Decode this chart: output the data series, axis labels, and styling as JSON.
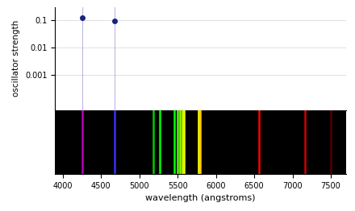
{
  "xlim": [
    3900,
    7700
  ],
  "osc_lines": [
    {
      "wavelength": 4258,
      "strength": 0.128
    },
    {
      "wavelength": 4678,
      "strength": 0.098
    }
  ],
  "spectrum_lines": [
    {
      "wavelength": 4260,
      "color": "#bb00bb"
    },
    {
      "wavelength": 4680,
      "color": "#3333ff"
    },
    {
      "wavelength": 5185,
      "color": "#00cc00"
    },
    {
      "wavelength": 5270,
      "color": "#00ff00"
    },
    {
      "wavelength": 5461,
      "color": "#00ff00"
    },
    {
      "wavelength": 5500,
      "color": "#55ff00"
    },
    {
      "wavelength": 5535,
      "color": "#99ff00"
    },
    {
      "wavelength": 5560,
      "color": "#ccff00"
    },
    {
      "wavelength": 5580,
      "color": "#eeff00"
    },
    {
      "wavelength": 5770,
      "color": "#ffff00"
    },
    {
      "wavelength": 5790,
      "color": "#ffcc00"
    },
    {
      "wavelength": 6563,
      "color": "#ff0000"
    },
    {
      "wavelength": 7160,
      "color": "#cc0000"
    },
    {
      "wavelength": 7500,
      "color": "#550000"
    }
  ],
  "ylim_osc": [
    5e-05,
    0.3
  ],
  "xlabel": "wavelength (angstroms)",
  "ylabel": "oscillator strength",
  "dot_color": "#1a237e",
  "vline_color": "#aaaadd",
  "bg_color": "#000000",
  "xticks": [
    4000,
    4500,
    5000,
    5500,
    6000,
    6500,
    7000,
    7500
  ],
  "yticks": [
    0.1,
    0.01,
    0.001
  ],
  "ytick_labels": [
    "0.1",
    "0.01",
    "0.001"
  ]
}
